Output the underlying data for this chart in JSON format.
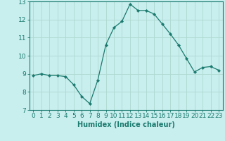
{
  "x": [
    0,
    1,
    2,
    3,
    4,
    5,
    6,
    7,
    8,
    9,
    10,
    11,
    12,
    13,
    14,
    15,
    16,
    17,
    18,
    19,
    20,
    21,
    22,
    23
  ],
  "y": [
    8.9,
    9.0,
    8.9,
    8.9,
    8.85,
    8.4,
    7.75,
    7.35,
    8.65,
    10.6,
    11.55,
    11.9,
    12.85,
    12.5,
    12.5,
    12.3,
    11.75,
    11.2,
    10.6,
    9.85,
    9.1,
    9.35,
    9.4,
    9.2
  ],
  "line_color": "#1a7a6e",
  "marker": "D",
  "marker_size": 2.2,
  "bg_color": "#c8eeee",
  "grid_color": "#aed8d0",
  "xlabel": "Humidex (Indice chaleur)",
  "xlim": [
    -0.5,
    23.5
  ],
  "ylim": [
    7,
    13
  ],
  "xticks": [
    0,
    1,
    2,
    3,
    4,
    5,
    6,
    7,
    8,
    9,
    10,
    11,
    12,
    13,
    14,
    15,
    16,
    17,
    18,
    19,
    20,
    21,
    22,
    23
  ],
  "yticks": [
    7,
    8,
    9,
    10,
    11,
    12,
    13
  ],
  "xlabel_fontsize": 7,
  "tick_fontsize": 6.5,
  "axis_color": "#1a7a6e",
  "linewidth": 0.9
}
